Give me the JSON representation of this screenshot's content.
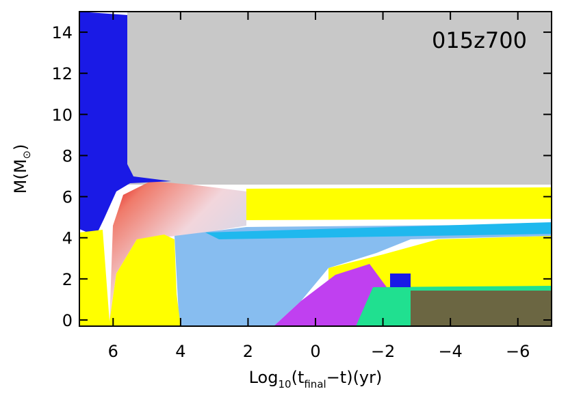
{
  "chart_data": {
    "type": "kippenhahn",
    "annotation": "015z700",
    "xlabel": [
      "Log",
      "10",
      "(t",
      "final",
      "−t)(yr)"
    ],
    "ylabel": [
      "M(M",
      "⊙",
      ")"
    ],
    "xlim": [
      7,
      -7
    ],
    "ylim": [
      -0.3,
      15
    ],
    "xticks": [
      6,
      4,
      2,
      0,
      {
        "value": -2,
        "label": "−2"
      },
      {
        "value": -4,
        "label": "−4"
      },
      {
        "value": -6,
        "label": "−6"
      }
    ],
    "yticks": [
      0,
      2,
      4,
      6,
      8,
      10,
      12,
      14
    ]
  }
}
